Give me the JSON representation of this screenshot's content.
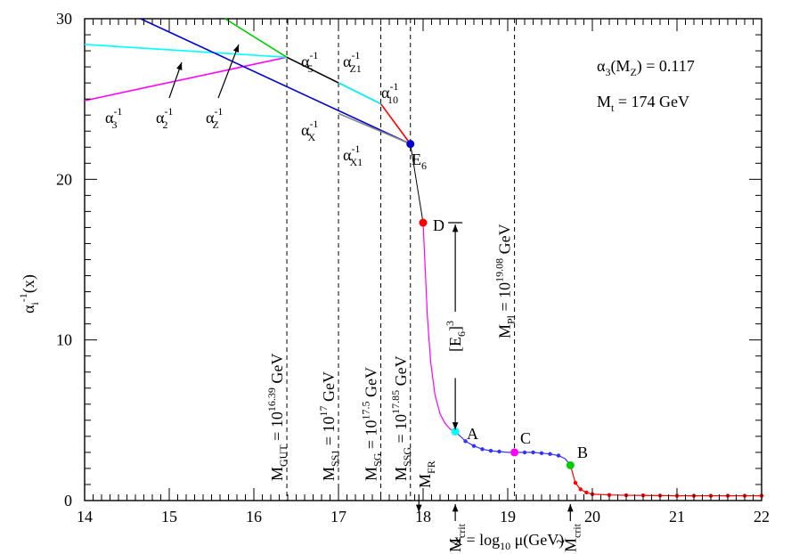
{
  "chart_data": {
    "type": "line",
    "title": "",
    "xlabel": "x = log10 μ(GeV)",
    "ylabel": "α_i^-1(x)",
    "xlim": [
      14,
      22
    ],
    "ylim": [
      0,
      30
    ],
    "xticks": [
      14,
      15,
      16,
      17,
      18,
      19,
      20,
      21,
      22
    ],
    "yticks": [
      0,
      10,
      20,
      30
    ],
    "grid": false,
    "legend": "none",
    "series": [
      {
        "name": "α3^-1",
        "color": "#ff00ff",
        "x": [
          14.0,
          16.39
        ],
        "y": [
          24.9,
          27.6
        ]
      },
      {
        "name": "α2^-1",
        "color": "#00ffff",
        "x": [
          14.0,
          16.39
        ],
        "y": [
          28.4,
          27.6
        ]
      },
      {
        "name": "αZ^-1",
        "color": "#00cc00",
        "x": [
          15.66,
          16.39
        ],
        "y": [
          30.0,
          27.6
        ]
      },
      {
        "name": "αX^-1",
        "color": "#0000cc",
        "x": [
          14.66,
          17.85
        ],
        "y": [
          30.0,
          22.2
        ]
      },
      {
        "name": "α5^-1",
        "color": "#000000",
        "x": [
          16.39,
          17.5
        ],
        "y": [
          27.6,
          24.7
        ]
      },
      {
        "name": "αZ1^-1",
        "color": "#00ffff",
        "x": [
          17.0,
          17.5
        ],
        "y": [
          26.0,
          24.7
        ]
      },
      {
        "name": "αX1^-1",
        "color": "#888888",
        "x": [
          17.0,
          17.85
        ],
        "y": [
          24.1,
          22.2
        ]
      },
      {
        "name": "α10^-1",
        "color": "#ff0000",
        "x": [
          17.5,
          17.85
        ],
        "y": [
          24.7,
          22.2
        ]
      },
      {
        "name": "E6",
        "color": "#000000",
        "x": [
          17.85,
          18.0
        ],
        "y": [
          22.2,
          17.3
        ]
      },
      {
        "name": "",
        "color": "#ff00ff",
        "x": [
          18.0,
          18.02,
          18.05,
          18.09,
          18.14,
          18.2,
          18.26,
          18.32,
          18.38
        ],
        "y": [
          17.3,
          15.0,
          11.5,
          8.6,
          6.6,
          5.4,
          4.8,
          4.45,
          4.3
        ]
      },
      {
        "name": "",
        "color": "#3333ff",
        "x": [
          18.38,
          18.5,
          18.6,
          18.7,
          18.8,
          18.9,
          19.0,
          19.08,
          19.2,
          19.3,
          19.4,
          19.5,
          19.6,
          19.68,
          19.74
        ],
        "y": [
          4.3,
          3.7,
          3.4,
          3.2,
          3.1,
          3.05,
          3.0,
          3.0,
          3.0,
          3.0,
          2.95,
          2.9,
          2.8,
          2.6,
          2.2
        ]
      },
      {
        "name": "",
        "color": "#ff0000",
        "x": [
          19.74,
          19.8,
          19.86,
          19.93,
          20.0,
          20.2,
          20.4,
          20.6,
          20.8,
          21.0,
          21.2,
          21.4,
          21.6,
          21.8,
          22.0
        ],
        "y": [
          2.2,
          1.1,
          0.7,
          0.5,
          0.4,
          0.35,
          0.33,
          0.32,
          0.31,
          0.3,
          0.3,
          0.3,
          0.3,
          0.3,
          0.3
        ]
      }
    ],
    "markers": [
      {
        "label": "E6",
        "color": "#0000cc",
        "x": 17.85,
        "y": 22.2
      },
      {
        "label": "D",
        "color": "#ff0000",
        "x": 18.0,
        "y": 17.3
      },
      {
        "label": "A",
        "color": "#00ffff",
        "x": 18.38,
        "y": 4.3
      },
      {
        "label": "C",
        "color": "#ff00ff",
        "x": 19.08,
        "y": 3.0
      },
      {
        "label": "B",
        "color": "#00cc00",
        "x": 19.74,
        "y": 2.2
      }
    ],
    "small_points": [
      {
        "color": "#3333ff",
        "x": [
          18.5,
          18.6,
          18.7,
          18.8,
          18.9,
          19.2,
          19.3,
          19.4,
          19.5,
          19.6
        ]
      },
      {
        "color": "#ff0000",
        "x": [
          19.8,
          19.86,
          19.93,
          20.0,
          20.2,
          20.4,
          20.6,
          20.8,
          21.0,
          21.2,
          21.4,
          21.6,
          21.8,
          22.0
        ]
      }
    ],
    "vlines": [
      {
        "x": 16.39,
        "label_main": "M",
        "label_sub": "GUT",
        "label_rest": " = 10",
        "label_sup": "16.39",
        "label_tail": " GeV"
      },
      {
        "x": 17.0,
        "label_main": "M",
        "label_sub": "SS1",
        "label_rest": " = 10",
        "label_sup": "17",
        "label_tail": " GeV"
      },
      {
        "x": 17.5,
        "label_main": "M",
        "label_sub": "SG",
        "label_rest": " = 10",
        "label_sup": "17.5",
        "label_tail": " GeV"
      },
      {
        "x": 17.85,
        "label_main": "M",
        "label_sub": "SSG",
        "label_rest": " = 10",
        "label_sup": "17.85",
        "label_tail": " GeV"
      },
      {
        "x": 19.08,
        "label_main": "M",
        "label_sub": "Pl",
        "label_rest": " = 10",
        "label_sup": "19.08",
        "label_tail": " GeV"
      }
    ],
    "annotations": {
      "alpha3_mz": "α3(MZ) = 0.117",
      "mt": "Mt = 174 GeV",
      "a5": "α5^-1",
      "aZ1": "αZ1^-1",
      "a10": "α10^-1",
      "aX": "αX^-1",
      "aX1": "αX1^-1",
      "a3": "α3^-1",
      "a2": "α2^-1",
      "aZ": "αZ^-1",
      "E6": "E6",
      "D": "D",
      "A": "A",
      "C": "C",
      "B": "B",
      "E6cube": "[E6]^3",
      "MFR": "MFR",
      "Mcrit": "Mcrit",
      "Mcrit_tilde": "M̃crit"
    }
  }
}
